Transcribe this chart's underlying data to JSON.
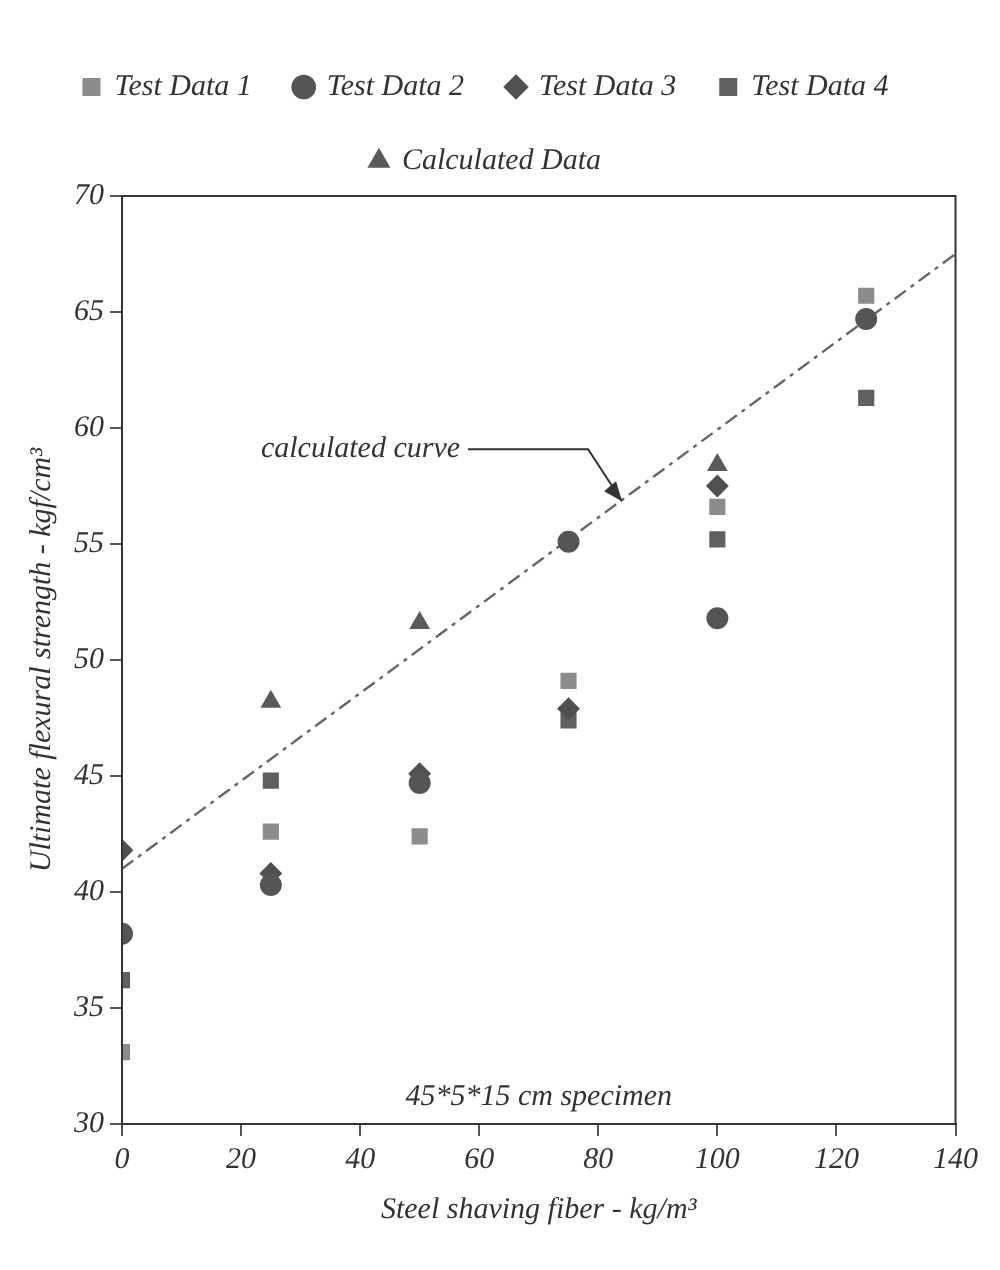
{
  "chart_data": {
    "type": "scatter",
    "xlabel": "Steel shaving fiber - kg/m³",
    "ylabel": "Ultimate flexural strength - kgf/cm³",
    "x": [
      0,
      25,
      50,
      75,
      100,
      125
    ],
    "series": [
      {
        "name": "Test Data 1",
        "color": "#8c8c8c",
        "marker": "square",
        "values": [
          33.1,
          42.6,
          42.4,
          49.1,
          56.6,
          65.7
        ]
      },
      {
        "name": "Test Data 2",
        "color": "#555555",
        "marker": "circle",
        "values": [
          38.2,
          40.3,
          44.7,
          55.1,
          51.8,
          64.7
        ]
      },
      {
        "name": "Test Data 3",
        "color": "#505050",
        "marker": "diamond",
        "values": [
          41.8,
          40.8,
          45.1,
          47.9,
          57.5,
          null
        ]
      },
      {
        "name": "Test Data 4",
        "color": "#606060",
        "marker": "square",
        "values": [
          36.2,
          44.8,
          null,
          47.4,
          55.2,
          61.3
        ]
      },
      {
        "name": "Calculated Data",
        "color": "#5a5a5a",
        "marker": "triangle",
        "values": [
          null,
          48.2,
          51.6,
          null,
          58.4,
          null
        ]
      },
      {
        "type": "line",
        "color": "#666666",
        "marker": "none",
        "line_style": "dashed",
        "x": [
          0,
          140
        ],
        "values": [
          41,
          67.5
        ]
      }
    ],
    "xlim": [
      0,
      140
    ],
    "xticks": [
      0,
      20,
      40,
      60,
      80,
      100,
      120,
      140
    ],
    "ylim": [
      30,
      70
    ],
    "yticks": [
      30,
      35,
      40,
      45,
      50,
      55,
      60,
      65,
      70
    ],
    "grid": false,
    "legend": "top",
    "annotations": [
      {
        "text": "calculated curve",
        "x": 85,
        "y": 56.5
      },
      "45*5*15 cm specimen"
    ]
  }
}
